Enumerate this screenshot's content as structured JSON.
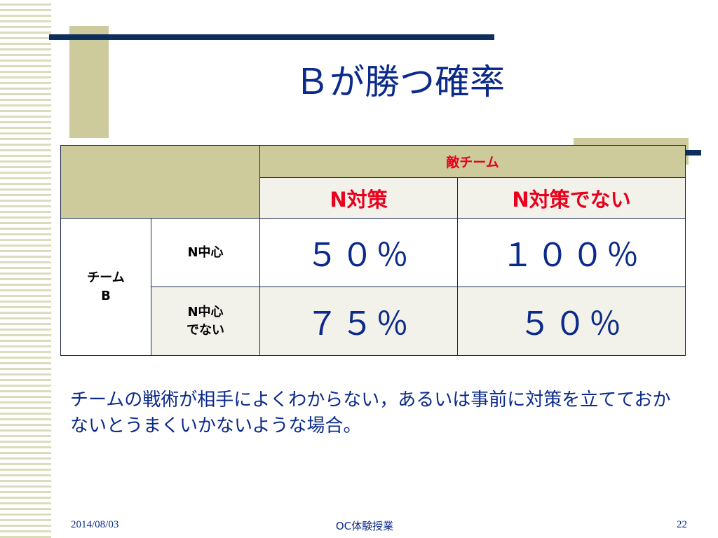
{
  "slide": {
    "title": "Ｂが勝つ確率",
    "body": "チームの戦術が相手によくわからない，あるいは事前に対策を立てておかないとうまくいかないような場合。"
  },
  "table": {
    "enemy_team_header": "敵チーム",
    "columns": [
      "N対策",
      "N対策でない"
    ],
    "team_b_label": "チーム\nB",
    "rows": [
      {
        "label": "N中心",
        "values": [
          "５０％",
          "１００％"
        ]
      },
      {
        "label": "N中心\nでない",
        "values": [
          "７５％",
          "５０％"
        ]
      }
    ]
  },
  "footer": {
    "date": "2014/08/03",
    "center": "OC体験授業",
    "page": "22"
  },
  "colors": {
    "navy_accent": "#0d2f5e",
    "khaki_accent": "#cdcb9c",
    "header_red": "#e8001c",
    "text_blue": "#0b2a8a"
  }
}
